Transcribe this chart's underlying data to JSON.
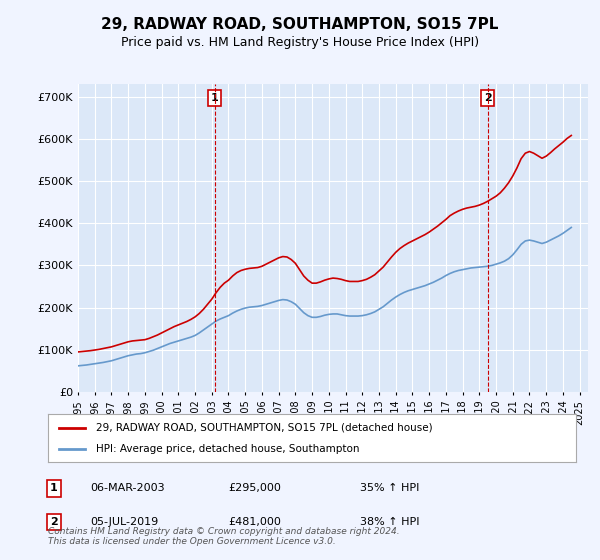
{
  "title": "29, RADWAY ROAD, SOUTHAMPTON, SO15 7PL",
  "subtitle": "Price paid vs. HM Land Registry's House Price Index (HPI)",
  "ylabel_ticks": [
    "£0",
    "£100K",
    "£200K",
    "£300K",
    "£400K",
    "£500K",
    "£600K",
    "£700K"
  ],
  "ytick_values": [
    0,
    100000,
    200000,
    300000,
    400000,
    500000,
    600000,
    700000
  ],
  "ylim": [
    0,
    730000
  ],
  "xlim_start": 1995.0,
  "xlim_end": 2025.5,
  "red_line_color": "#cc0000",
  "blue_line_color": "#6699cc",
  "marker1_x": 2003.18,
  "marker1_y": 295000,
  "marker1_label": "1",
  "marker2_x": 2019.5,
  "marker2_y": 481000,
  "marker2_label": "2",
  "vline1_x": 2003.18,
  "vline2_x": 2019.5,
  "vline_color": "#cc0000",
  "legend_red_label": "29, RADWAY ROAD, SOUTHAMPTON, SO15 7PL (detached house)",
  "legend_blue_label": "HPI: Average price, detached house, Southampton",
  "table_data": [
    {
      "num": "1",
      "date": "06-MAR-2003",
      "price": "£295,000",
      "change": "35% ↑ HPI"
    },
    {
      "num": "2",
      "date": "05-JUL-2019",
      "price": "£481,000",
      "change": "38% ↑ HPI"
    }
  ],
  "footer": "Contains HM Land Registry data © Crown copyright and database right 2024.\nThis data is licensed under the Open Government Licence v3.0.",
  "background_color": "#f0f4ff",
  "plot_bg_color": "#dce8f8",
  "grid_color": "#ffffff",
  "hpi_years": [
    1995,
    1995.25,
    1995.5,
    1995.75,
    1996,
    1996.25,
    1996.5,
    1996.75,
    1997,
    1997.25,
    1997.5,
    1997.75,
    1998,
    1998.25,
    1998.5,
    1998.75,
    1999,
    1999.25,
    1999.5,
    1999.75,
    2000,
    2000.25,
    2000.5,
    2000.75,
    2001,
    2001.25,
    2001.5,
    2001.75,
    2002,
    2002.25,
    2002.5,
    2002.75,
    2003,
    2003.25,
    2003.5,
    2003.75,
    2004,
    2004.25,
    2004.5,
    2004.75,
    2005,
    2005.25,
    2005.5,
    2005.75,
    2006,
    2006.25,
    2006.5,
    2006.75,
    2007,
    2007.25,
    2007.5,
    2007.75,
    2008,
    2008.25,
    2008.5,
    2008.75,
    2009,
    2009.25,
    2009.5,
    2009.75,
    2010,
    2010.25,
    2010.5,
    2010.75,
    2011,
    2011.25,
    2011.5,
    2011.75,
    2012,
    2012.25,
    2012.5,
    2012.75,
    2013,
    2013.25,
    2013.5,
    2013.75,
    2014,
    2014.25,
    2014.5,
    2014.75,
    2015,
    2015.25,
    2015.5,
    2015.75,
    2016,
    2016.25,
    2016.5,
    2016.75,
    2017,
    2017.25,
    2017.5,
    2017.75,
    2018,
    2018.25,
    2018.5,
    2018.75,
    2019,
    2019.25,
    2019.5,
    2019.75,
    2020,
    2020.25,
    2020.5,
    2020.75,
    2021,
    2021.25,
    2021.5,
    2021.75,
    2022,
    2022.25,
    2022.5,
    2022.75,
    2023,
    2023.25,
    2023.5,
    2023.75,
    2024,
    2024.25,
    2024.5
  ],
  "hpi_values": [
    62000,
    63000,
    64000,
    65500,
    67000,
    68500,
    70000,
    72000,
    74000,
    77000,
    80000,
    83000,
    86000,
    88000,
    90000,
    91000,
    93000,
    96000,
    99000,
    103000,
    107000,
    111000,
    115000,
    118000,
    121000,
    124000,
    127000,
    130000,
    134000,
    140000,
    147000,
    154000,
    161000,
    168000,
    173000,
    177000,
    181000,
    187000,
    192000,
    196000,
    199000,
    201000,
    202000,
    203000,
    205000,
    208000,
    211000,
    214000,
    217000,
    219000,
    218000,
    214000,
    208000,
    198000,
    188000,
    181000,
    177000,
    177000,
    179000,
    182000,
    184000,
    185000,
    185000,
    183000,
    181000,
    180000,
    180000,
    180000,
    181000,
    183000,
    186000,
    190000,
    196000,
    202000,
    210000,
    218000,
    225000,
    231000,
    236000,
    240000,
    243000,
    246000,
    249000,
    252000,
    256000,
    260000,
    265000,
    270000,
    276000,
    281000,
    285000,
    288000,
    290000,
    292000,
    294000,
    295000,
    296000,
    297000,
    298000,
    300000,
    303000,
    306000,
    310000,
    316000,
    325000,
    337000,
    350000,
    358000,
    360000,
    358000,
    355000,
    352000,
    355000,
    360000,
    365000,
    370000,
    376000,
    383000,
    390000
  ],
  "red_years": [
    1995,
    1995.25,
    1995.5,
    1995.75,
    1996,
    1996.25,
    1996.5,
    1996.75,
    1997,
    1997.25,
    1997.5,
    1997.75,
    1998,
    1998.25,
    1998.5,
    1998.75,
    1999,
    1999.25,
    1999.5,
    1999.75,
    2000,
    2000.25,
    2000.5,
    2000.75,
    2001,
    2001.25,
    2001.5,
    2001.75,
    2002,
    2002.25,
    2002.5,
    2002.75,
    2003,
    2003.25,
    2003.5,
    2003.75,
    2004,
    2004.25,
    2004.5,
    2004.75,
    2005,
    2005.25,
    2005.5,
    2005.75,
    2006,
    2006.25,
    2006.5,
    2006.75,
    2007,
    2007.25,
    2007.5,
    2007.75,
    2008,
    2008.25,
    2008.5,
    2008.75,
    2009,
    2009.25,
    2009.5,
    2009.75,
    2010,
    2010.25,
    2010.5,
    2010.75,
    2011,
    2011.25,
    2011.5,
    2011.75,
    2012,
    2012.25,
    2012.5,
    2012.75,
    2013,
    2013.25,
    2013.5,
    2013.75,
    2014,
    2014.25,
    2014.5,
    2014.75,
    2015,
    2015.25,
    2015.5,
    2015.75,
    2016,
    2016.25,
    2016.5,
    2016.75,
    2017,
    2017.25,
    2017.5,
    2017.75,
    2018,
    2018.25,
    2018.5,
    2018.75,
    2019,
    2019.25,
    2019.5,
    2019.75,
    2020,
    2020.25,
    2020.5,
    2020.75,
    2021,
    2021.25,
    2021.5,
    2021.75,
    2022,
    2022.25,
    2022.5,
    2022.75,
    2023,
    2023.25,
    2023.5,
    2023.75,
    2024,
    2024.25,
    2024.5
  ],
  "red_values": [
    95000,
    96000,
    97000,
    98000,
    99500,
    101000,
    103000,
    105000,
    107000,
    110000,
    113000,
    116000,
    119000,
    121000,
    122000,
    123000,
    124000,
    127000,
    131000,
    135000,
    140000,
    145000,
    150000,
    155000,
    159000,
    163000,
    167000,
    172000,
    178000,
    186000,
    196000,
    208000,
    220000,
    235000,
    248000,
    258000,
    265000,
    275000,
    283000,
    288000,
    291000,
    293000,
    294000,
    295000,
    298000,
    303000,
    308000,
    313000,
    318000,
    321000,
    320000,
    314000,
    305000,
    290000,
    275000,
    265000,
    258000,
    258000,
    261000,
    265000,
    268000,
    270000,
    269000,
    267000,
    264000,
    262000,
    262000,
    262000,
    264000,
    267000,
    272000,
    278000,
    287000,
    296000,
    308000,
    320000,
    331000,
    340000,
    347000,
    353000,
    358000,
    363000,
    368000,
    373000,
    379000,
    386000,
    393000,
    401000,
    409000,
    418000,
    424000,
    429000,
    433000,
    436000,
    438000,
    440000,
    443000,
    447000,
    452000,
    458000,
    464000,
    472000,
    483000,
    496000,
    512000,
    531000,
    553000,
    566000,
    570000,
    566000,
    560000,
    554000,
    559000,
    567000,
    576000,
    584000,
    592000,
    601000,
    608000
  ]
}
